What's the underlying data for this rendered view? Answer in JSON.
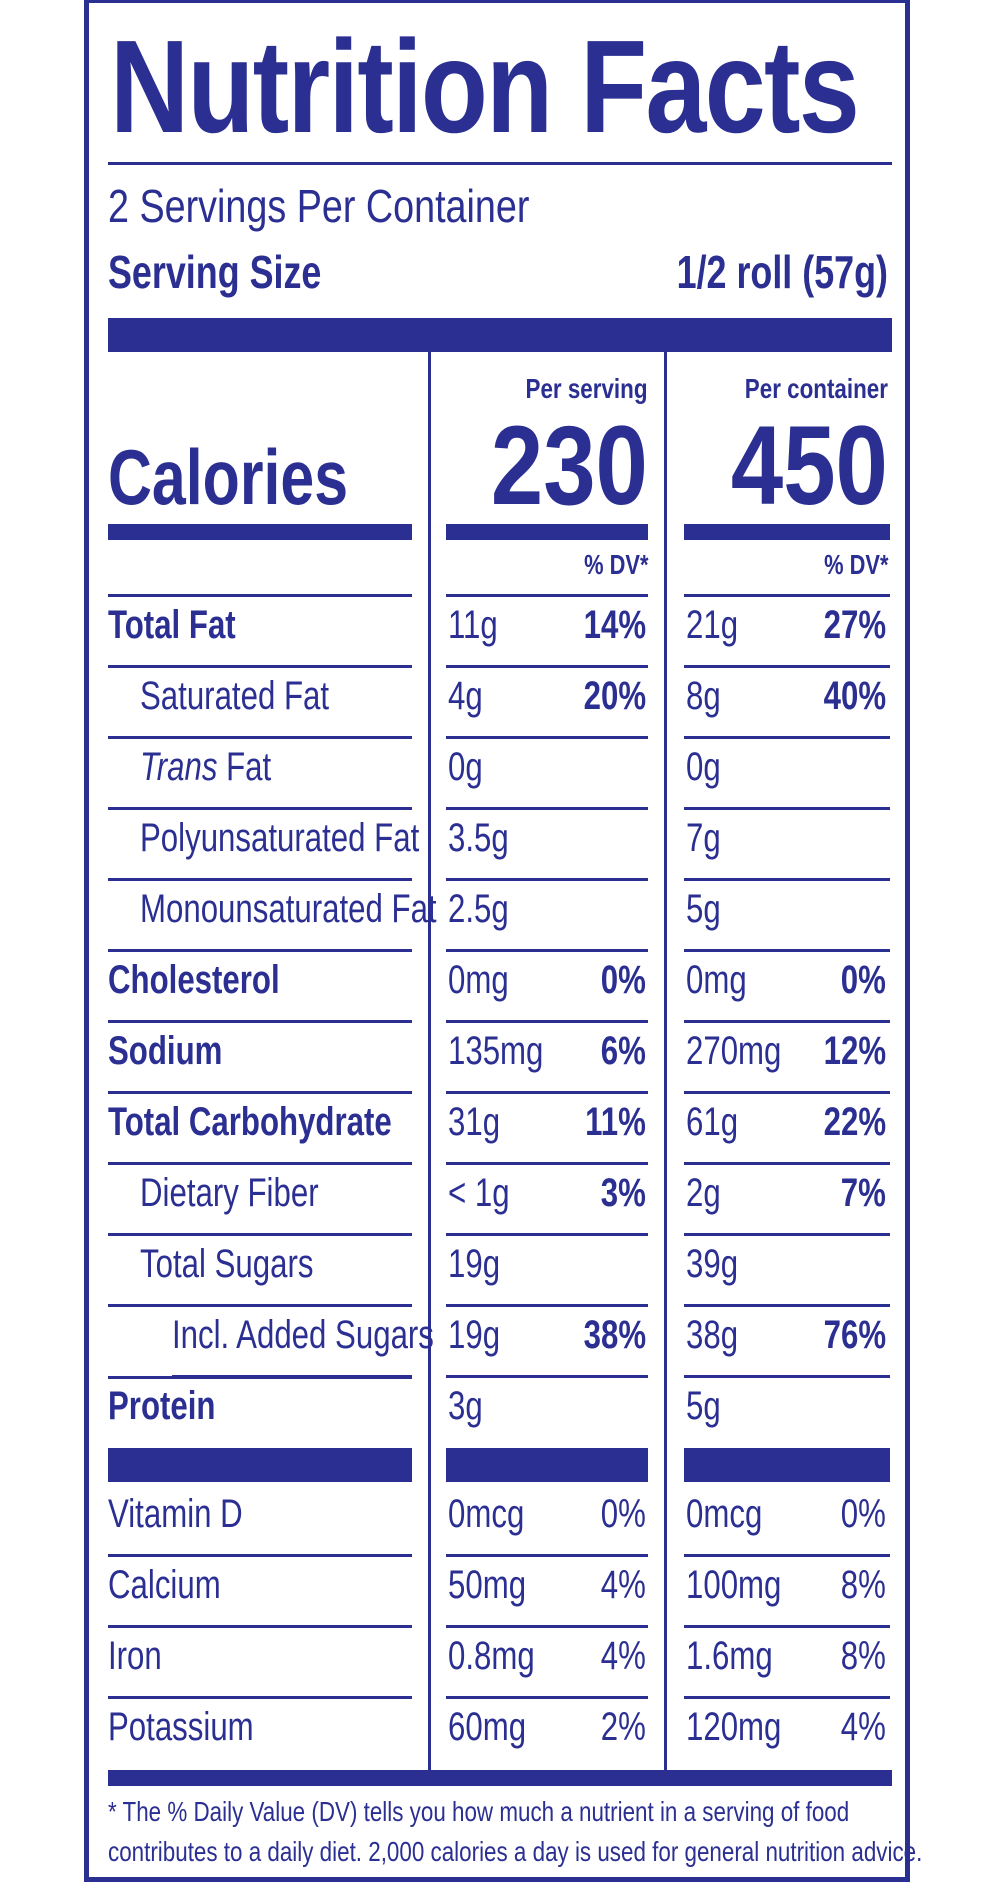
{
  "title": "Nutrition Facts",
  "servings_per_container": "2 Servings Per Container",
  "serving_size_label": "Serving Size",
  "serving_size_value": "1/2 roll (57g)",
  "calories_label": "Calories",
  "columns": [
    {
      "header": "Per serving",
      "calories": "230",
      "dv_header": "% DV*"
    },
    {
      "header": "Per container",
      "calories": "450",
      "dv_header": "% DV*"
    }
  ],
  "rows": [
    {
      "label": "Total Fat",
      "serving": "11g",
      "serving_dv": "14%",
      "container": "21g",
      "container_dv": "27%"
    },
    {
      "label": "Saturated Fat",
      "serving": "4g",
      "serving_dv": "20%",
      "container": "8g",
      "container_dv": "40%"
    },
    {
      "label_italic": "Trans",
      "label": "Fat",
      "serving": "0g",
      "serving_dv": "",
      "container": "0g",
      "container_dv": ""
    },
    {
      "label": "Polyunsaturated Fat",
      "serving": "3.5g",
      "serving_dv": "",
      "container": "7g",
      "container_dv": ""
    },
    {
      "label": "Monounsaturated Fat",
      "serving": "2.5g",
      "serving_dv": "",
      "container": "5g",
      "container_dv": ""
    },
    {
      "label": "Cholesterol",
      "serving": "0mg",
      "serving_dv": "0%",
      "container": "0mg",
      "container_dv": "0%"
    },
    {
      "label": "Sodium",
      "serving": "135mg",
      "serving_dv": "6%",
      "container": "270mg",
      "container_dv": "12%"
    },
    {
      "label": "Total Carbohydrate",
      "serving": "31g",
      "serving_dv": "11%",
      "container": "61g",
      "container_dv": "22%"
    },
    {
      "label": "Dietary Fiber",
      "serving": "< 1g",
      "serving_dv": "3%",
      "container": "2g",
      "container_dv": "7%"
    },
    {
      "label": "Total Sugars",
      "serving": "19g",
      "serving_dv": "",
      "container": "39g",
      "container_dv": ""
    },
    {
      "label": "Incl. Added Sugars",
      "serving": "19g",
      "serving_dv": "38%",
      "container": "38g",
      "container_dv": "76%"
    },
    {
      "label": "Protein",
      "serving": "3g",
      "serving_dv": "",
      "container": "5g",
      "container_dv": ""
    }
  ],
  "vitamins": [
    {
      "label": "Vitamin D",
      "serving": "0mcg",
      "serving_dv": "0%",
      "container": "0mcg",
      "container_dv": "0%"
    },
    {
      "label": "Calcium",
      "serving": "50mg",
      "serving_dv": "4%",
      "container": "100mg",
      "container_dv": "8%"
    },
    {
      "label": "Iron",
      "serving": "0.8mg",
      "serving_dv": "4%",
      "container": "1.6mg",
      "container_dv": "8%"
    },
    {
      "label": "Potassium",
      "serving": "60mg",
      "serving_dv": "2%",
      "container": "120mg",
      "container_dv": "4%"
    }
  ],
  "footnote_line1": "* The % Daily Value (DV) tells you how much a nutrient in a serving of food",
  "footnote_line2": "contributes to a daily diet. 2,000 calories a day is used for general nutrition advice.",
  "colors": {
    "ink": "#2b2f92",
    "background": "#ffffff"
  }
}
